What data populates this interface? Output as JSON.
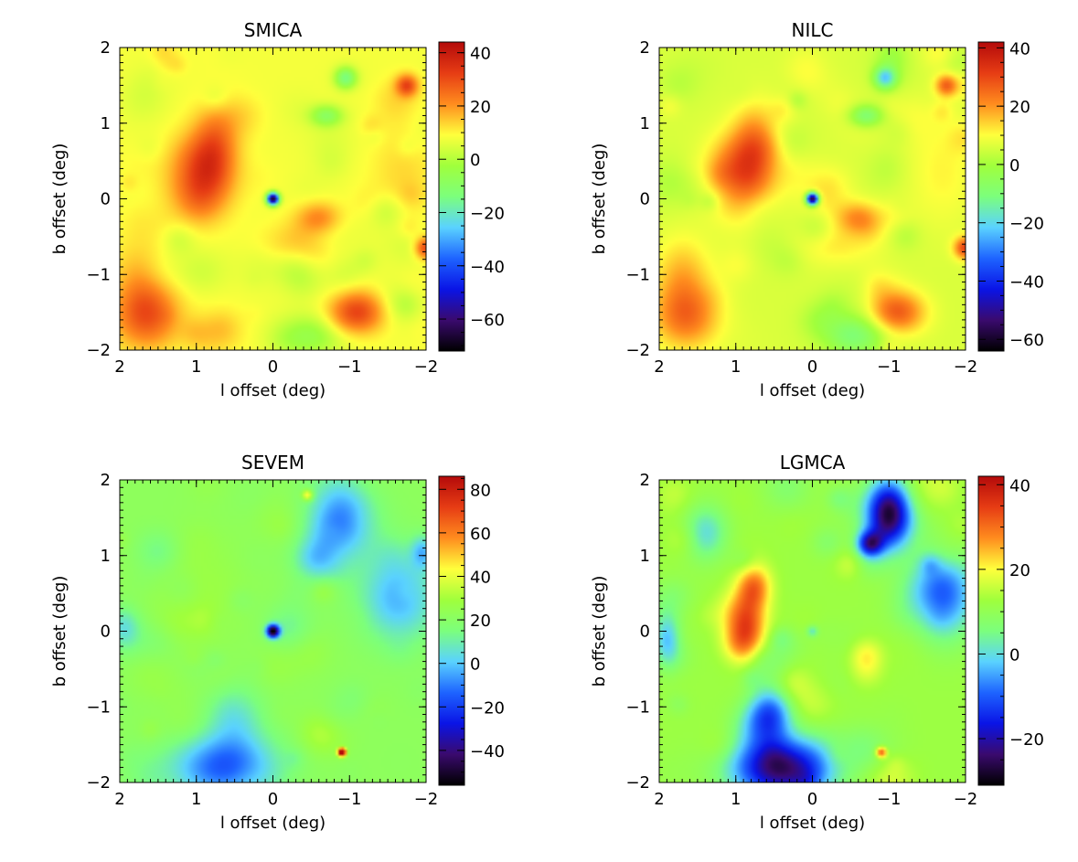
{
  "figure_colors": {
    "colormap": [
      "#000000",
      "#3a0a6e",
      "#0a14e6",
      "#1e64ff",
      "#5ad2ff",
      "#7cff7c",
      "#a0ff3c",
      "#ffff3c",
      "#ff8c1e",
      "#e63c14",
      "#b40a0a"
    ],
    "axes": "#000000",
    "background": "#ffffff"
  },
  "chart_data": [
    {
      "type": "heatmap",
      "title": "SMICA",
      "xlabel": "l offset (deg)",
      "ylabel": "b offset (deg)",
      "xlim": [
        2,
        -2
      ],
      "ylim": [
        -2,
        2
      ],
      "xticks": [
        2,
        1,
        0,
        -1,
        -2
      ],
      "yticks": [
        -2,
        -1,
        0,
        1,
        2
      ],
      "xtick_labels": [
        "2",
        "1",
        "0",
        "−1",
        "−2"
      ],
      "ytick_labels": [
        "−2",
        "−1",
        "0",
        "1",
        "2"
      ],
      "colorbar": {
        "range": [
          -72,
          44
        ],
        "ticks": [
          40,
          20,
          0,
          -20,
          -40,
          -60
        ],
        "tick_labels": [
          "40",
          "20",
          "0",
          "−20",
          "−40",
          "−60"
        ]
      },
      "background_value": 8,
      "features": [
        {
          "l": 0.95,
          "b": 0.3,
          "sl": 0.28,
          "sb": 0.35,
          "value": 26
        },
        {
          "l": 0.75,
          "b": 0.75,
          "sl": 0.2,
          "sb": 0.35,
          "value": 14
        },
        {
          "l": -0.6,
          "b": -0.25,
          "sl": 0.2,
          "sb": 0.15,
          "value": 14
        },
        {
          "l": -0.3,
          "b": -0.6,
          "sl": 0.35,
          "sb": 0.2,
          "value": 6
        },
        {
          "l": -1.1,
          "b": -1.5,
          "sl": 0.25,
          "sb": 0.2,
          "value": 24
        },
        {
          "l": 1.65,
          "b": -1.55,
          "sl": 0.3,
          "sb": 0.3,
          "value": 20
        },
        {
          "l": 1.7,
          "b": -1.0,
          "sl": 0.25,
          "sb": 0.35,
          "value": 10
        },
        {
          "l": -1.75,
          "b": 1.5,
          "sl": 0.1,
          "sb": 0.1,
          "value": 22
        },
        {
          "l": -0.95,
          "b": 1.6,
          "sl": 0.1,
          "sb": 0.1,
          "value": -22
        },
        {
          "l": -0.7,
          "b": 1.1,
          "sl": 0.15,
          "sb": 0.1,
          "value": -16
        },
        {
          "l": -0.6,
          "b": -1.8,
          "sl": 0.3,
          "sb": 0.2,
          "value": -14
        },
        {
          "l": -1.7,
          "b": 0.35,
          "sl": 0.3,
          "sb": 0.5,
          "value": 5
        },
        {
          "l": -2.0,
          "b": -0.65,
          "sl": 0.1,
          "sb": 0.1,
          "value": 24
        },
        {
          "l": 0.0,
          "b": 0.0,
          "sl": 0.055,
          "sb": 0.055,
          "value": -78
        }
      ]
    },
    {
      "type": "heatmap",
      "title": "NILC",
      "xlabel": "l offset (deg)",
      "ylabel": "b offset (deg)",
      "xlim": [
        2,
        -2
      ],
      "ylim": [
        -2,
        2
      ],
      "xticks": [
        2,
        1,
        0,
        -1,
        -2
      ],
      "yticks": [
        -2,
        -1,
        0,
        1,
        2
      ],
      "xtick_labels": [
        "2",
        "1",
        "0",
        "−1",
        "−2"
      ],
      "ytick_labels": [
        "−2",
        "−1",
        "0",
        "1",
        "2"
      ],
      "colorbar": {
        "range": [
          -64,
          42
        ],
        "ticks": [
          40,
          20,
          0,
          -20,
          -40,
          -60
        ],
        "tick_labels": [
          "40",
          "20",
          "0",
          "−20",
          "−40",
          "−60"
        ]
      },
      "background_value": 6,
      "features": [
        {
          "l": 0.95,
          "b": 0.3,
          "sl": 0.28,
          "sb": 0.35,
          "value": 24
        },
        {
          "l": 0.75,
          "b": 0.75,
          "sl": 0.2,
          "sb": 0.35,
          "value": 14
        },
        {
          "l": -0.6,
          "b": -0.25,
          "sl": 0.2,
          "sb": 0.15,
          "value": 14
        },
        {
          "l": -0.3,
          "b": -0.6,
          "sl": 0.35,
          "sb": 0.2,
          "value": 6
        },
        {
          "l": -1.1,
          "b": -1.5,
          "sl": 0.25,
          "sb": 0.2,
          "value": 22
        },
        {
          "l": 1.65,
          "b": -1.55,
          "sl": 0.3,
          "sb": 0.3,
          "value": 18
        },
        {
          "l": 1.7,
          "b": -1.0,
          "sl": 0.25,
          "sb": 0.35,
          "value": 10
        },
        {
          "l": -1.75,
          "b": 1.5,
          "sl": 0.1,
          "sb": 0.1,
          "value": 20
        },
        {
          "l": -0.95,
          "b": 1.6,
          "sl": 0.1,
          "sb": 0.1,
          "value": -26
        },
        {
          "l": -0.7,
          "b": 1.1,
          "sl": 0.15,
          "sb": 0.1,
          "value": -16
        },
        {
          "l": -0.6,
          "b": -1.8,
          "sl": 0.3,
          "sb": 0.2,
          "value": -14
        },
        {
          "l": -1.7,
          "b": 0.35,
          "sl": 0.3,
          "sb": 0.5,
          "value": 5
        },
        {
          "l": -2.0,
          "b": -0.65,
          "sl": 0.1,
          "sb": 0.1,
          "value": 22
        },
        {
          "l": 0.0,
          "b": 0.0,
          "sl": 0.055,
          "sb": 0.055,
          "value": -70
        }
      ]
    },
    {
      "type": "heatmap",
      "title": "SEVEM",
      "xlabel": "l offset (deg)",
      "ylabel": "b offset (deg)",
      "xlim": [
        2,
        -2
      ],
      "ylim": [
        -2,
        2
      ],
      "xticks": [
        2,
        1,
        0,
        -1,
        -2
      ],
      "yticks": [
        -2,
        -1,
        0,
        1,
        2
      ],
      "xtick_labels": [
        "2",
        "1",
        "0",
        "−1",
        "−2"
      ],
      "ytick_labels": [
        "−2",
        "−1",
        "0",
        "1",
        "2"
      ],
      "colorbar": {
        "range": [
          -56,
          86
        ],
        "ticks": [
          80,
          60,
          40,
          20,
          0,
          -20,
          -40
        ],
        "tick_labels": [
          "80",
          "60",
          "40",
          "20",
          "0",
          "−20",
          "−40"
        ]
      },
      "background_value": 22,
      "features": [
        {
          "l": 0.6,
          "b": -1.8,
          "sl": 0.5,
          "sb": 0.3,
          "value": -38
        },
        {
          "l": 0.5,
          "b": -1.1,
          "sl": 0.25,
          "sb": 0.3,
          "value": -16
        },
        {
          "l": -0.9,
          "b": 1.5,
          "sl": 0.3,
          "sb": 0.4,
          "value": -30
        },
        {
          "l": -0.55,
          "b": 0.95,
          "sl": 0.2,
          "sb": 0.2,
          "value": -18
        },
        {
          "l": -1.65,
          "b": 0.45,
          "sl": 0.35,
          "sb": 0.4,
          "value": -26
        },
        {
          "l": -1.95,
          "b": 1.05,
          "sl": 0.1,
          "sb": 0.15,
          "value": -20
        },
        {
          "l": 1.95,
          "b": 0.05,
          "sl": 0.15,
          "sb": 0.2,
          "value": -16
        },
        {
          "l": 1.5,
          "b": 1.05,
          "sl": 0.2,
          "sb": 0.2,
          "value": -10
        },
        {
          "l": -0.2,
          "b": 0.05,
          "sl": 0.22,
          "sb": 0.22,
          "value": -10
        },
        {
          "l": 0.0,
          "b": 0.0,
          "sl": 0.06,
          "sb": 0.06,
          "value": -78
        },
        {
          "l": -0.45,
          "b": 1.8,
          "sl": 0.05,
          "sb": 0.05,
          "value": 28
        },
        {
          "l": -0.9,
          "b": -1.6,
          "sl": 0.035,
          "sb": 0.035,
          "value": 96
        },
        {
          "l": 1.0,
          "b": 0.5,
          "sl": 0.5,
          "sb": 0.5,
          "value": 6
        }
      ]
    },
    {
      "type": "heatmap",
      "title": "LGMCA",
      "xlabel": "l offset (deg)",
      "ylabel": "b offset (deg)",
      "xlim": [
        2,
        -2
      ],
      "ylim": [
        -2,
        2
      ],
      "xticks": [
        2,
        1,
        0,
        -1,
        -2
      ],
      "yticks": [
        -2,
        -1,
        0,
        1,
        2
      ],
      "xtick_labels": [
        "2",
        "1",
        "0",
        "−1",
        "−2"
      ],
      "ytick_labels": [
        "−2",
        "−1",
        "0",
        "1",
        "2"
      ],
      "colorbar": {
        "range": [
          -31,
          42
        ],
        "ticks": [
          40,
          20,
          0,
          -20
        ],
        "tick_labels": [
          "40",
          "20",
          "0",
          "−20"
        ]
      },
      "background_value": 12,
      "features": [
        {
          "l": 0.85,
          "b": 0.1,
          "sl": 0.18,
          "sb": 0.35,
          "value": 18
        },
        {
          "l": 0.75,
          "b": 0.6,
          "sl": 0.15,
          "sb": 0.2,
          "value": 14
        },
        {
          "l": 0.4,
          "b": -1.8,
          "sl": 0.45,
          "sb": 0.3,
          "value": -38
        },
        {
          "l": 0.55,
          "b": -1.1,
          "sl": 0.2,
          "sb": 0.25,
          "value": -20
        },
        {
          "l": -1.0,
          "b": 1.55,
          "sl": 0.2,
          "sb": 0.3,
          "value": -42
        },
        {
          "l": -0.75,
          "b": 1.15,
          "sl": 0.12,
          "sb": 0.12,
          "value": -28
        },
        {
          "l": -1.7,
          "b": 0.5,
          "sl": 0.3,
          "sb": 0.4,
          "value": -22
        },
        {
          "l": 1.9,
          "b": -0.1,
          "sl": 0.12,
          "sb": 0.25,
          "value": -14
        },
        {
          "l": 1.4,
          "b": 1.3,
          "sl": 0.2,
          "sb": 0.25,
          "value": -12
        },
        {
          "l": 0.0,
          "b": 0.0,
          "sl": 0.05,
          "sb": 0.05,
          "value": -10
        },
        {
          "l": -0.9,
          "b": -1.6,
          "sl": 0.05,
          "sb": 0.05,
          "value": 22
        },
        {
          "l": -0.7,
          "b": -0.3,
          "sl": 0.15,
          "sb": 0.15,
          "value": 8
        }
      ]
    }
  ]
}
